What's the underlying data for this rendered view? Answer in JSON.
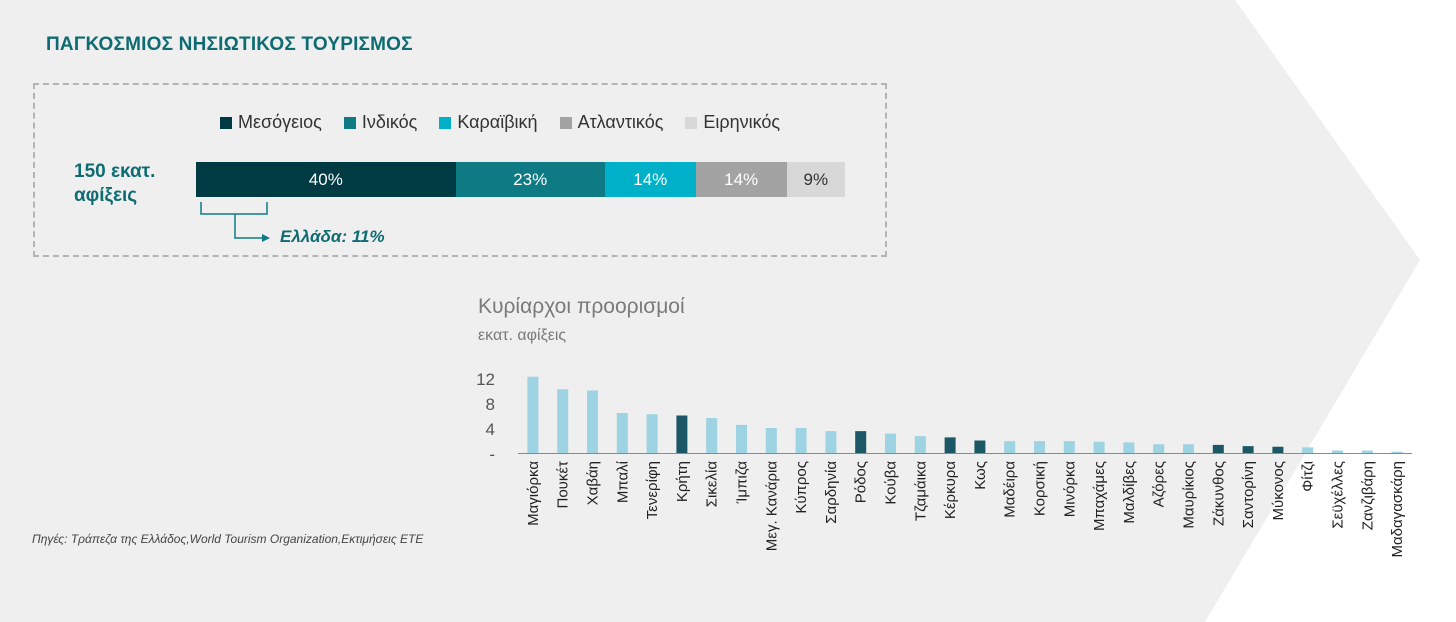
{
  "title": "ΠΑΓΚΟΣΜΙΟΣ ΝΗΣΙΩΤΙΚΟΣ ΤΟΥΡΙΣΜΟΣ",
  "summary": {
    "total_label": "150 εκατ. αφίξεις",
    "greece_note": "Ελλάδα: 11%",
    "legend": [
      {
        "label": "Μεσόγειος",
        "color": "#003b44"
      },
      {
        "label": "Ινδικός",
        "color": "#0e7a84"
      },
      {
        "label": "Καραϊβική",
        "color": "#00b0c8"
      },
      {
        "label": "Ατλαντικός",
        "color": "#a3a3a3"
      },
      {
        "label": "Ειρηνικός",
        "color": "#d8d8d8"
      }
    ],
    "segments": [
      {
        "label": "40%",
        "value": 40,
        "color": "#003b44",
        "text_color": "#ffffff"
      },
      {
        "label": "23%",
        "value": 23,
        "color": "#0e7a84",
        "text_color": "#ffffff"
      },
      {
        "label": "14%",
        "value": 14,
        "color": "#00b0c8",
        "text_color": "#ffffff"
      },
      {
        "label": "14%",
        "value": 14,
        "color": "#a3a3a3",
        "text_color": "#ffffff"
      },
      {
        "label": "9%",
        "value": 9,
        "color": "#d8d8d8",
        "text_color": "#333333"
      }
    ]
  },
  "chart_data": {
    "type": "bar",
    "title": "Κυρίαρχοι προορισμοί",
    "subtitle": "εκατ. αφίξεις",
    "yticks": [
      "-",
      "4",
      "8",
      "12"
    ],
    "ylim": [
      0,
      13
    ],
    "categories": [
      "Μαγιόρκα",
      "Πουκέτ",
      "Χαβάη",
      "Μπαλί",
      "Τενερίφη",
      "Κρήτη",
      "Σικελία",
      "Ίμπιζα",
      "Μεγ. Κανάρια",
      "Κύπρος",
      "Σαρδηνία",
      "Ρόδος",
      "Κούβα",
      "Τζαμάικα",
      "Κέρκυρα",
      "Κως",
      "Μαδέιρα",
      "Κορσική",
      "Μινόρκα",
      "Μπαχάμες",
      "Μαλδίβες",
      "Αζόρες",
      "Μαυρίκιος",
      "Ζάκυνθος",
      "Σαντορίνη",
      "Μύκονος",
      "Φίτζι",
      "Σεϋχέλλες",
      "Ζανζιβάρη",
      "Μαδαγασκάρη"
    ],
    "values": [
      12.2,
      10.2,
      10.0,
      6.4,
      6.2,
      6.0,
      5.6,
      4.5,
      4.0,
      4.0,
      3.5,
      3.5,
      3.1,
      2.7,
      2.5,
      2.0,
      1.9,
      1.9,
      1.9,
      1.8,
      1.7,
      1.4,
      1.4,
      1.3,
      1.1,
      1.0,
      0.9,
      0.4,
      0.4,
      0.2
    ],
    "greek": [
      false,
      false,
      false,
      false,
      false,
      true,
      false,
      false,
      false,
      false,
      false,
      true,
      false,
      false,
      true,
      true,
      false,
      false,
      false,
      false,
      false,
      false,
      false,
      true,
      true,
      true,
      false,
      false,
      false,
      false
    ],
    "colors": {
      "default": "#9dd3e2",
      "greek": "#1c5765",
      "axis": "#8a8a8a",
      "tick_text": "#555555"
    }
  },
  "source": "Πηγές: Τράπεζα της Ελλάδος,World Tourism Organization,Εκτιμήσεις ΕΤΕ"
}
